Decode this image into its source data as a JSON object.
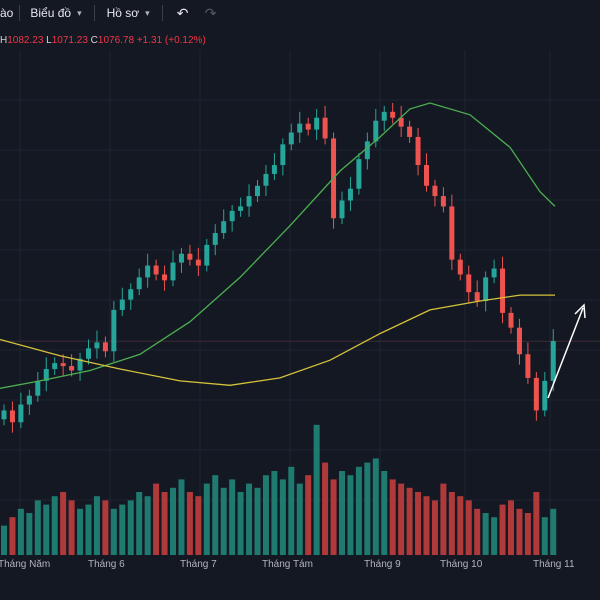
{
  "toolbar": {
    "indicator_label": "ào",
    "chart_menu_label": "Biểu đồ",
    "profile_menu_label": "Hồ sơ",
    "undo_icon": "undo-icon",
    "redo_icon": "redo-icon"
  },
  "legend": {
    "high_label": "H",
    "high_value": "1082.23",
    "low_label": "L",
    "low_value": "1071.23",
    "close_label": "C",
    "close_value": "1076.78",
    "change": "+1.31 (+0.12%)"
  },
  "colors": {
    "background": "#141823",
    "up": "#26a69a",
    "down": "#ef5350",
    "ma_fast": "#4caf50",
    "ma_slow": "#d4c33a",
    "arrow": "#ffffff"
  },
  "chart_data": {
    "type": "candlestick",
    "x_tick_labels": [
      "Tháng Năm",
      "Tháng 6",
      "Tháng 7",
      "Tháng Tám",
      "Tháng 9",
      "Tháng 10",
      "Tháng 11"
    ],
    "close_series": [
      1030,
      1022,
      1034,
      1040,
      1050,
      1058,
      1062,
      1060,
      1057,
      1065,
      1072,
      1076,
      1070,
      1098,
      1105,
      1112,
      1120,
      1128,
      1122,
      1118,
      1130,
      1136,
      1132,
      1128,
      1142,
      1150,
      1158,
      1165,
      1168,
      1175,
      1182,
      1190,
      1196,
      1210,
      1218,
      1224,
      1220,
      1228,
      1214,
      1160,
      1172,
      1180,
      1200,
      1212,
      1226,
      1232,
      1228,
      1222,
      1215,
      1196,
      1182,
      1175,
      1168,
      1132,
      1122,
      1110,
      1104,
      1120,
      1126,
      1096,
      1086,
      1068,
      1052,
      1030,
      1050,
      1077
    ],
    "volume_series": [
      14,
      18,
      22,
      20,
      26,
      24,
      28,
      30,
      26,
      22,
      24,
      28,
      26,
      22,
      24,
      26,
      30,
      28,
      34,
      30,
      32,
      36,
      30,
      28,
      34,
      38,
      32,
      36,
      30,
      34,
      32,
      38,
      40,
      36,
      42,
      34,
      38,
      62,
      44,
      36,
      40,
      38,
      42,
      44,
      46,
      40,
      36,
      34,
      32,
      30,
      28,
      26,
      34,
      30,
      28,
      26,
      22,
      20,
      18,
      24,
      26,
      22,
      20,
      30,
      18,
      22
    ],
    "ma_fast_points": [
      [
        0,
        1045
      ],
      [
        40,
        1050
      ],
      [
        90,
        1057
      ],
      [
        140,
        1068
      ],
      [
        190,
        1090
      ],
      [
        240,
        1120
      ],
      [
        290,
        1155
      ],
      [
        340,
        1192
      ],
      [
        380,
        1215
      ],
      [
        410,
        1234
      ],
      [
        430,
        1238
      ],
      [
        470,
        1230
      ],
      [
        510,
        1208
      ],
      [
        540,
        1178
      ],
      [
        555,
        1168
      ]
    ],
    "ma_slow_points": [
      [
        0,
        1078
      ],
      [
        60,
        1067
      ],
      [
        120,
        1058
      ],
      [
        180,
        1050
      ],
      [
        230,
        1047
      ],
      [
        280,
        1052
      ],
      [
        330,
        1064
      ],
      [
        380,
        1082
      ],
      [
        430,
        1098
      ],
      [
        480,
        1104
      ],
      [
        520,
        1108
      ],
      [
        555,
        1108
      ]
    ]
  }
}
